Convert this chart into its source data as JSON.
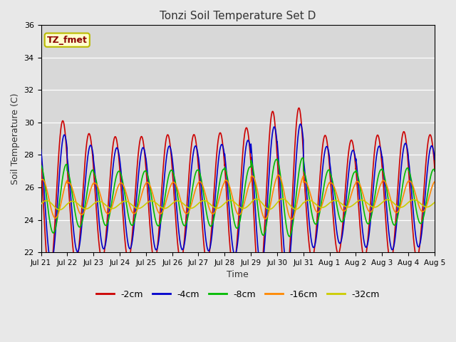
{
  "title": "Tonzi Soil Temperature Set D",
  "xlabel": "Time",
  "ylabel": "Soil Temperature (C)",
  "ylim": [
    22,
    36
  ],
  "background_color": "#e8e8e8",
  "plot_bg_color": "#d8d8d8",
  "annotation_text": "TZ_fmet",
  "annotation_color": "#8b0000",
  "annotation_bg": "#ffffcc",
  "annotation_border": "#bbbb00",
  "tick_labels": [
    "Jul 21",
    "Jul 22",
    "Jul 23",
    "Jul 24",
    "Jul 25",
    "Jul 26",
    "Jul 27",
    "Jul 28",
    "Jul 29",
    "Jul 30",
    "Jul 31",
    "Aug 1",
    "Aug 2",
    "Aug 3",
    "Aug 4",
    "Aug 5"
  ],
  "series": {
    "-2cm": {
      "color": "#cc0000",
      "lw": 1.2
    },
    "-4cm": {
      "color": "#0000cc",
      "lw": 1.2
    },
    "-8cm": {
      "color": "#00bb00",
      "lw": 1.2
    },
    "-16cm": {
      "color": "#ff8800",
      "lw": 1.2
    },
    "-32cm": {
      "color": "#cccc00",
      "lw": 1.2
    }
  },
  "legend_order": [
    "-2cm",
    "-4cm",
    "-8cm",
    "-16cm",
    "-32cm"
  ]
}
